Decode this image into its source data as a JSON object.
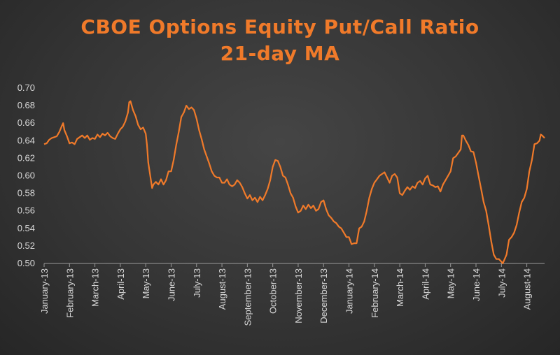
{
  "chart_data": {
    "type": "line",
    "title": "CBOE Options Equity Put/Call Ratio",
    "subtitle": "21-day MA",
    "xlabel": "",
    "ylabel": "",
    "ylim": [
      0.5,
      0.7
    ],
    "yticks": [
      "0.70",
      "0.68",
      "0.66",
      "0.64",
      "0.62",
      "0.60",
      "0.58",
      "0.56",
      "0.54",
      "0.52",
      "0.50"
    ],
    "grid": false,
    "legend": "none",
    "line_color": "#f07a2a",
    "categories": [
      "January-13",
      "February-13",
      "March-13",
      "April-13",
      "May-13",
      "June-13",
      "July-13",
      "August-13",
      "September-13",
      "October-13",
      "November-13",
      "December-13",
      "January-14",
      "February-14",
      "March-14",
      "April-14",
      "May-14",
      "June-14",
      "July-14",
      "August-14"
    ],
    "series": [
      {
        "values": [
          [
            0.0,
            0.636
          ],
          [
            0.1,
            0.637
          ],
          [
            0.2,
            0.641
          ],
          [
            0.3,
            0.643
          ],
          [
            0.4,
            0.644
          ],
          [
            0.5,
            0.645
          ],
          [
            0.6,
            0.65
          ],
          [
            0.7,
            0.657
          ],
          [
            0.75,
            0.66
          ],
          [
            0.8,
            0.652
          ],
          [
            0.9,
            0.645
          ],
          [
            1.0,
            0.637
          ],
          [
            1.1,
            0.638
          ],
          [
            1.2,
            0.636
          ],
          [
            1.3,
            0.642
          ],
          [
            1.4,
            0.644
          ],
          [
            1.5,
            0.646
          ],
          [
            1.6,
            0.643
          ],
          [
            1.7,
            0.646
          ],
          [
            1.8,
            0.641
          ],
          [
            1.9,
            0.643
          ],
          [
            2.0,
            0.642
          ],
          [
            2.1,
            0.647
          ],
          [
            2.2,
            0.644
          ],
          [
            2.3,
            0.648
          ],
          [
            2.4,
            0.646
          ],
          [
            2.5,
            0.649
          ],
          [
            2.6,
            0.645
          ],
          [
            2.7,
            0.643
          ],
          [
            2.8,
            0.642
          ],
          [
            2.9,
            0.648
          ],
          [
            3.0,
            0.653
          ],
          [
            3.1,
            0.656
          ],
          [
            3.2,
            0.662
          ],
          [
            3.3,
            0.672
          ],
          [
            3.35,
            0.684
          ],
          [
            3.4,
            0.685
          ],
          [
            3.5,
            0.675
          ],
          [
            3.6,
            0.668
          ],
          [
            3.7,
            0.658
          ],
          [
            3.8,
            0.653
          ],
          [
            3.9,
            0.655
          ],
          [
            4.0,
            0.648
          ],
          [
            4.05,
            0.635
          ],
          [
            4.1,
            0.615
          ],
          [
            4.2,
            0.596
          ],
          [
            4.25,
            0.586
          ],
          [
            4.3,
            0.59
          ],
          [
            4.4,
            0.593
          ],
          [
            4.5,
            0.59
          ],
          [
            4.6,
            0.596
          ],
          [
            4.7,
            0.59
          ],
          [
            4.8,
            0.595
          ],
          [
            4.9,
            0.605
          ],
          [
            5.0,
            0.605
          ],
          [
            5.1,
            0.618
          ],
          [
            5.2,
            0.635
          ],
          [
            5.3,
            0.65
          ],
          [
            5.4,
            0.667
          ],
          [
            5.5,
            0.672
          ],
          [
            5.6,
            0.68
          ],
          [
            5.7,
            0.676
          ],
          [
            5.8,
            0.678
          ],
          [
            5.9,
            0.675
          ],
          [
            6.0,
            0.665
          ],
          [
            6.1,
            0.652
          ],
          [
            6.2,
            0.642
          ],
          [
            6.3,
            0.63
          ],
          [
            6.4,
            0.622
          ],
          [
            6.5,
            0.614
          ],
          [
            6.6,
            0.605
          ],
          [
            6.7,
            0.6
          ],
          [
            6.8,
            0.598
          ],
          [
            6.9,
            0.598
          ],
          [
            7.0,
            0.592
          ],
          [
            7.1,
            0.592
          ],
          [
            7.2,
            0.596
          ],
          [
            7.3,
            0.59
          ],
          [
            7.4,
            0.588
          ],
          [
            7.5,
            0.59
          ],
          [
            7.6,
            0.595
          ],
          [
            7.7,
            0.592
          ],
          [
            7.8,
            0.587
          ],
          [
            7.9,
            0.58
          ],
          [
            8.0,
            0.574
          ],
          [
            8.1,
            0.578
          ],
          [
            8.2,
            0.572
          ],
          [
            8.3,
            0.575
          ],
          [
            8.4,
            0.57
          ],
          [
            8.5,
            0.576
          ],
          [
            8.6,
            0.572
          ],
          [
            8.7,
            0.578
          ],
          [
            8.8,
            0.585
          ],
          [
            8.9,
            0.595
          ],
          [
            9.0,
            0.61
          ],
          [
            9.1,
            0.618
          ],
          [
            9.2,
            0.617
          ],
          [
            9.3,
            0.61
          ],
          [
            9.4,
            0.6
          ],
          [
            9.5,
            0.598
          ],
          [
            9.6,
            0.59
          ],
          [
            9.7,
            0.58
          ],
          [
            9.8,
            0.575
          ],
          [
            9.9,
            0.565
          ],
          [
            10.0,
            0.558
          ],
          [
            10.1,
            0.56
          ],
          [
            10.2,
            0.566
          ],
          [
            10.3,
            0.562
          ],
          [
            10.4,
            0.567
          ],
          [
            10.5,
            0.563
          ],
          [
            10.6,
            0.566
          ],
          [
            10.7,
            0.56
          ],
          [
            10.8,
            0.562
          ],
          [
            10.9,
            0.57
          ],
          [
            11.0,
            0.572
          ],
          [
            11.1,
            0.562
          ],
          [
            11.2,
            0.555
          ],
          [
            11.3,
            0.552
          ],
          [
            11.4,
            0.548
          ],
          [
            11.5,
            0.546
          ],
          [
            11.6,
            0.542
          ],
          [
            11.7,
            0.54
          ],
          [
            11.8,
            0.535
          ],
          [
            11.9,
            0.53
          ],
          [
            12.0,
            0.53
          ],
          [
            12.1,
            0.522
          ],
          [
            12.2,
            0.523
          ],
          [
            12.3,
            0.523
          ],
          [
            12.4,
            0.54
          ],
          [
            12.5,
            0.542
          ],
          [
            12.6,
            0.548
          ],
          [
            12.7,
            0.56
          ],
          [
            12.8,
            0.575
          ],
          [
            12.9,
            0.585
          ],
          [
            13.0,
            0.592
          ],
          [
            13.1,
            0.596
          ],
          [
            13.2,
            0.6
          ],
          [
            13.3,
            0.602
          ],
          [
            13.4,
            0.604
          ],
          [
            13.5,
            0.598
          ],
          [
            13.6,
            0.592
          ],
          [
            13.7,
            0.6
          ],
          [
            13.8,
            0.602
          ],
          [
            13.9,
            0.598
          ],
          [
            14.0,
            0.58
          ],
          [
            14.1,
            0.578
          ],
          [
            14.2,
            0.583
          ],
          [
            14.3,
            0.587
          ],
          [
            14.4,
            0.584
          ],
          [
            14.5,
            0.588
          ],
          [
            14.6,
            0.586
          ],
          [
            14.7,
            0.592
          ],
          [
            14.8,
            0.594
          ],
          [
            14.9,
            0.59
          ],
          [
            15.0,
            0.597
          ],
          [
            15.1,
            0.6
          ],
          [
            15.2,
            0.59
          ],
          [
            15.3,
            0.589
          ],
          [
            15.4,
            0.587
          ],
          [
            15.5,
            0.588
          ],
          [
            15.6,
            0.582
          ],
          [
            15.7,
            0.59
          ],
          [
            15.8,
            0.595
          ],
          [
            15.9,
            0.6
          ],
          [
            16.0,
            0.605
          ],
          [
            16.1,
            0.62
          ],
          [
            16.2,
            0.622
          ],
          [
            16.3,
            0.626
          ],
          [
            16.4,
            0.63
          ],
          [
            16.45,
            0.646
          ],
          [
            16.5,
            0.646
          ],
          [
            16.6,
            0.64
          ],
          [
            16.7,
            0.635
          ],
          [
            16.8,
            0.628
          ],
          [
            16.9,
            0.627
          ],
          [
            17.0,
            0.615
          ],
          [
            17.1,
            0.6
          ],
          [
            17.2,
            0.585
          ],
          [
            17.3,
            0.57
          ],
          [
            17.4,
            0.56
          ],
          [
            17.5,
            0.543
          ],
          [
            17.6,
            0.525
          ],
          [
            17.7,
            0.51
          ],
          [
            17.8,
            0.505
          ],
          [
            17.9,
            0.505
          ],
          [
            18.0,
            0.502
          ],
          [
            18.05,
            0.5
          ],
          [
            18.1,
            0.503
          ],
          [
            18.2,
            0.51
          ],
          [
            18.3,
            0.527
          ],
          [
            18.4,
            0.53
          ],
          [
            18.5,
            0.535
          ],
          [
            18.6,
            0.544
          ],
          [
            18.7,
            0.558
          ],
          [
            18.8,
            0.57
          ],
          [
            18.9,
            0.575
          ],
          [
            19.0,
            0.585
          ],
          [
            19.1,
            0.605
          ],
          [
            19.2,
            0.618
          ],
          [
            19.3,
            0.636
          ],
          [
            19.4,
            0.637
          ],
          [
            19.5,
            0.64
          ],
          [
            19.55,
            0.647
          ],
          [
            19.6,
            0.646
          ],
          [
            19.7,
            0.643
          ]
        ]
      }
    ]
  }
}
